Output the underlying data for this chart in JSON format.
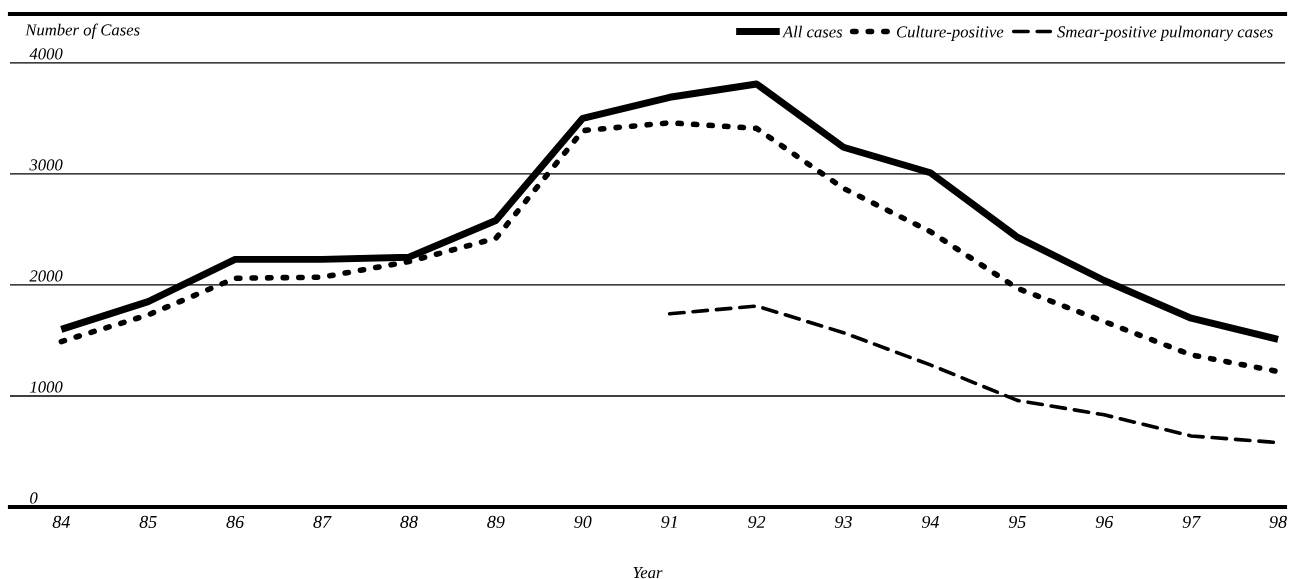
{
  "chart_data": {
    "type": "line",
    "xlabel": "Year",
    "ylabel": "Number of Cases",
    "categories": [
      "84",
      "85",
      "86",
      "87",
      "88",
      "89",
      "90",
      "91",
      "92",
      "93",
      "94",
      "95",
      "96",
      "97",
      "98"
    ],
    "series": [
      {
        "name": "All cases",
        "color": "#000000",
        "line_style": "solid",
        "values": [
          1600,
          1850,
          2230,
          2230,
          2250,
          2580,
          3500,
          3690,
          3810,
          3240,
          3010,
          2430,
          2040,
          1700,
          1510
        ]
      },
      {
        "name": "Culture-positive",
        "color": "#000000",
        "line_style": "dotted",
        "values": [
          1490,
          1730,
          2060,
          2070,
          2210,
          2420,
          3390,
          3460,
          3410,
          2870,
          2480,
          1970,
          1670,
          1370,
          1220
        ]
      },
      {
        "name": "Smear-positive pulmonary cases",
        "color": "#000000",
        "line_style": "dashed",
        "values": [
          null,
          null,
          null,
          null,
          null,
          null,
          null,
          1740,
          1810,
          1570,
          1280,
          960,
          830,
          640,
          580
        ]
      }
    ],
    "ylim": [
      0,
      4440
    ],
    "yticks": [
      0,
      1000,
      2000,
      3000,
      4000
    ],
    "grid": "y",
    "legend": "top right",
    "marker": "none"
  }
}
